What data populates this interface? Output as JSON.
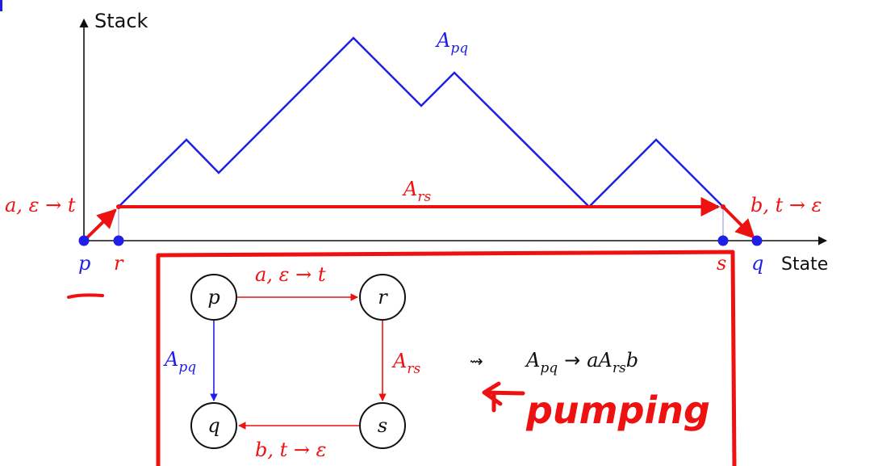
{
  "colors": {
    "blue": "#1f1fe6",
    "red": "#ee1111",
    "black": "#111111",
    "gray": "#999999"
  },
  "axes": {
    "y_label": "Stack",
    "x_label": "State"
  },
  "plot": {
    "path_label_main": "pq",
    "path_label_main_prefix": "A",
    "path_label_inner": "rs",
    "path_label_inner_prefix": "A",
    "push_label": "a, ε → t",
    "pop_label": "b, t → ε",
    "points": {
      "p": "p",
      "r": "r",
      "s": "s",
      "q": "q"
    }
  },
  "automaton": {
    "states": [
      "p",
      "r",
      "q",
      "s"
    ],
    "edge_pr": "a, ε → t",
    "edge_pq_prefix": "A",
    "edge_pq_sub": "pq",
    "edge_rs_prefix": "A",
    "edge_rs_sub": "rs",
    "edge_sq": "b, t → ε",
    "squiggle": "⇝",
    "rule_lhs": "A",
    "rule_lhs_sub": "pq",
    "rule_arrow": "→",
    "rule_rhs_a": "aA",
    "rule_rhs_sub": "rs",
    "rule_rhs_b": "b"
  },
  "annotation": {
    "handwritten": "pumping"
  }
}
